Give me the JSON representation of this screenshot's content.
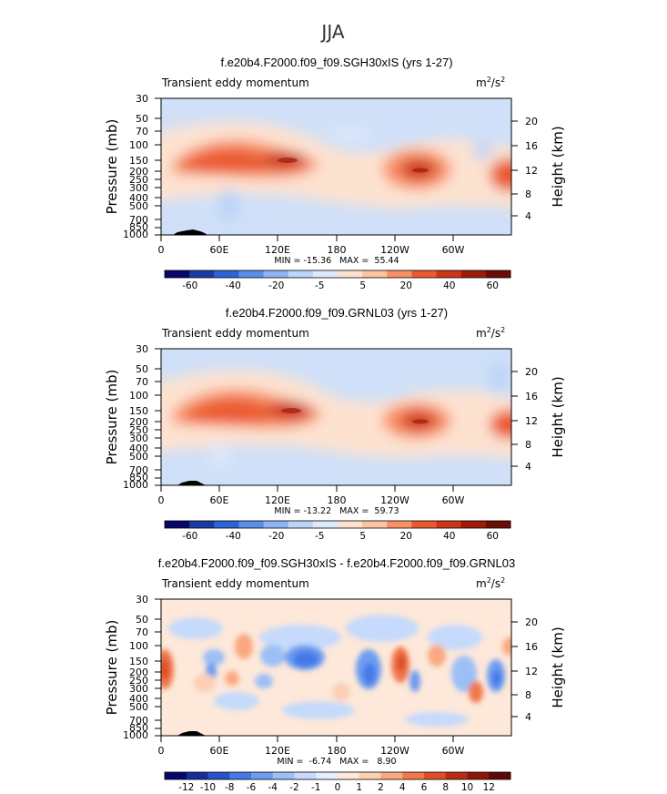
{
  "figure": {
    "season": "JJA"
  },
  "chart_data": [
    {
      "type": "heatmap",
      "title": "f.e20b4.F2000.f09_f09.SGH30xIS (yrs 1-27)",
      "subtitle_left": "Transient eddy momentum",
      "units": "m2/s2",
      "ylabel": "Pressure (mb)",
      "ylabel_right": "Height (km)",
      "xlabel": "",
      "x_ticks": [
        "0",
        "60E",
        "120E",
        "180",
        "120W",
        "60W"
      ],
      "y_ticks": [
        "30",
        "50",
        "70",
        "100",
        "150",
        "200",
        "250",
        "300",
        "400",
        "500",
        "700",
        "850",
        "1000"
      ],
      "y_right_ticks": [
        "20",
        "16",
        "12",
        "8",
        "4"
      ],
      "stats": "MIN = -15.36   MAX =  55.44",
      "min": -15.36,
      "max": 55.44,
      "colorbar_labels": [
        "-60",
        "-40",
        "-20",
        "-5",
        "5",
        "20",
        "40",
        "60"
      ],
      "features": [
        {
          "lon": 110,
          "p": 150,
          "value": 50
        },
        {
          "lon": 230,
          "p": 200,
          "value": 55
        },
        {
          "lon": 350,
          "p": 200,
          "value": 35
        },
        {
          "lon": 15,
          "p": 300,
          "value": -10
        },
        {
          "lon": 140,
          "p": 100,
          "value": -8
        },
        {
          "lon": 330,
          "p": 70,
          "value": -10
        }
      ]
    },
    {
      "type": "heatmap",
      "title": "f.e20b4.F2000.f09_f09.GRNL03 (yrs 1-27)",
      "subtitle_left": "Transient eddy momentum",
      "units": "m2/s2",
      "ylabel": "Pressure (mb)",
      "ylabel_right": "Height (km)",
      "xlabel": "",
      "x_ticks": [
        "0",
        "60E",
        "120E",
        "180",
        "120W",
        "60W"
      ],
      "y_ticks": [
        "30",
        "50",
        "70",
        "100",
        "150",
        "200",
        "250",
        "300",
        "400",
        "500",
        "700",
        "850",
        "1000"
      ],
      "y_right_ticks": [
        "20",
        "16",
        "12",
        "8",
        "4"
      ],
      "stats": "MIN = -13.22   MAX =  59.73",
      "min": -13.22,
      "max": 59.73,
      "colorbar_labels": [
        "-60",
        "-40",
        "-20",
        "-5",
        "5",
        "20",
        "40",
        "60"
      ],
      "features": [
        {
          "lon": 115,
          "p": 150,
          "value": 55
        },
        {
          "lon": 230,
          "p": 200,
          "value": 59
        },
        {
          "lon": 355,
          "p": 200,
          "value": 35
        },
        {
          "lon": 15,
          "p": 300,
          "value": -8
        },
        {
          "lon": 330,
          "p": 70,
          "value": -10
        }
      ]
    },
    {
      "type": "heatmap",
      "title": "f.e20b4.F2000.f09_f09.SGH30xIS - f.e20b4.F2000.f09_f09.GRNL03",
      "subtitle_left": "Transient eddy momentum",
      "units": "m2/s2",
      "ylabel": "Pressure (mb)",
      "ylabel_right": "Height (km)",
      "xlabel": "",
      "x_ticks": [
        "0",
        "60E",
        "120E",
        "180",
        "120W",
        "60W"
      ],
      "y_ticks": [
        "30",
        "50",
        "70",
        "100",
        "150",
        "200",
        "250",
        "300",
        "400",
        "500",
        "700",
        "850",
        "1000"
      ],
      "y_right_ticks": [
        "20",
        "16",
        "12",
        "8",
        "4"
      ],
      "stats": "MIN =  -6.74   MAX =   8.90",
      "min": -6.74,
      "max": 8.9,
      "colorbar_labels": [
        "-12",
        "-10",
        "-8",
        "-6",
        "-4",
        "-2",
        "-1",
        "0",
        "1",
        "2",
        "4",
        "6",
        "8",
        "10",
        "12"
      ],
      "features": [
        {
          "lon": 0,
          "p": 180,
          "value": 7
        },
        {
          "lon": 95,
          "p": 150,
          "value": 4
        },
        {
          "lon": 120,
          "p": 150,
          "value": -5
        },
        {
          "lon": 150,
          "p": 150,
          "value": -6
        },
        {
          "lon": 200,
          "p": 180,
          "value": -5
        },
        {
          "lon": 215,
          "p": 200,
          "value": 8
        },
        {
          "lon": 225,
          "p": 250,
          "value": -4
        },
        {
          "lon": 290,
          "p": 200,
          "value": -4
        },
        {
          "lon": 315,
          "p": 250,
          "value": 4
        },
        {
          "lon": 345,
          "p": 200,
          "value": -5
        }
      ]
    }
  ],
  "colors": {
    "title": "#000000",
    "frame": "#000000",
    "topography": "#000000",
    "palette_abs": [
      "#06066b",
      "#1a3ba6",
      "#2c63d6",
      "#5a8ee8",
      "#8db3f2",
      "#bcd4f7",
      "#dde9fc",
      "#fde2d0",
      "#fcc3a1",
      "#f89066",
      "#ea5a2f",
      "#cc3518",
      "#9f1a0a",
      "#6b0c05"
    ],
    "palette_diff": [
      "#06066b",
      "#152d99",
      "#2752cc",
      "#4479e6",
      "#6d9cf0",
      "#9bbff6",
      "#c6dafb",
      "#e4eefd",
      "#fde8da",
      "#fccfb3",
      "#f9a880",
      "#f0784b",
      "#de4d26",
      "#b92b12",
      "#8d1707",
      "#5e0a04"
    ]
  }
}
